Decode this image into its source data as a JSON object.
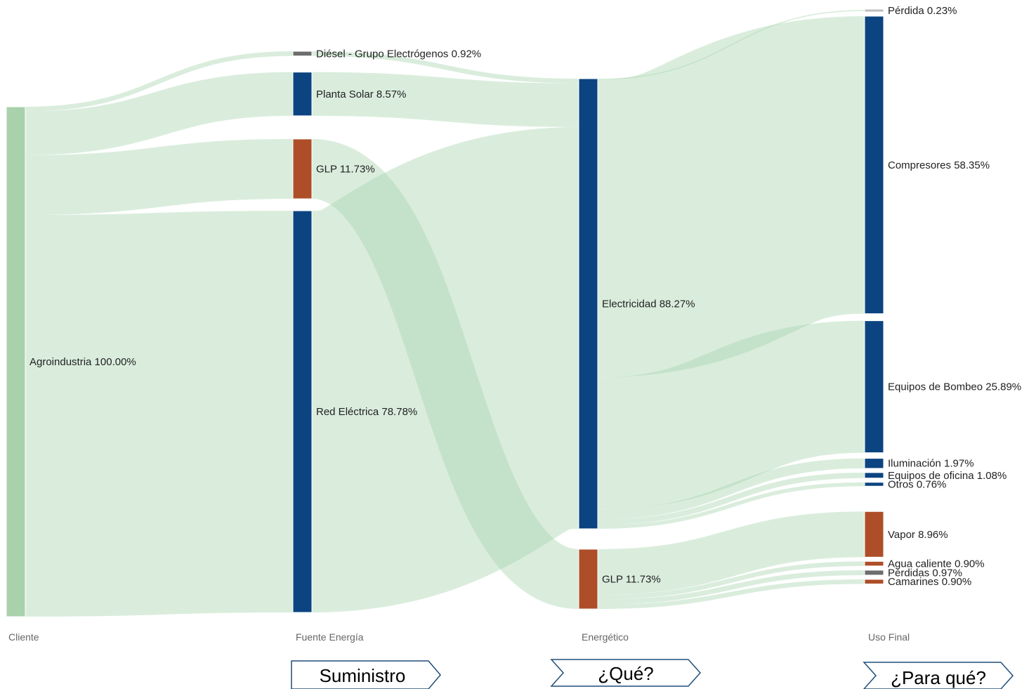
{
  "columns": [
    "Cliente",
    "Fuente Energía",
    "Energético",
    "Uso Final"
  ],
  "callouts": [
    "Suministro",
    "¿Qué?",
    "¿Para qué?"
  ],
  "colors": {
    "client": "#a9d1ac",
    "electric": "#0b4480",
    "glp": "#ad4e28",
    "gray": "#6d6d6d",
    "lightgray": "#bdbdbd",
    "link": "#a8d3ad"
  },
  "nodes": [
    {
      "id": "agro",
      "label": "Agroindustria 100.00%",
      "column": 0,
      "color": "client"
    },
    {
      "id": "diesel",
      "label": "Diésel - Grupo Electrógenos 0.92%",
      "column": 1,
      "color": "gray"
    },
    {
      "id": "solar",
      "label": "Planta Solar 8.57%",
      "column": 1,
      "color": "electric"
    },
    {
      "id": "glp_src",
      "label": "GLP 11.73%",
      "column": 1,
      "color": "glp"
    },
    {
      "id": "red",
      "label": "Red Eléctrica 78.78%",
      "column": 1,
      "color": "electric"
    },
    {
      "id": "elec",
      "label": "Electricidad 88.27%",
      "column": 2,
      "color": "electric"
    },
    {
      "id": "glp",
      "label": "GLP 11.73%",
      "column": 2,
      "color": "glp"
    },
    {
      "id": "perdida",
      "label": "Pérdida 0.23%",
      "column": 3,
      "color": "lightgray"
    },
    {
      "id": "comp",
      "label": "Compresores 58.35%",
      "column": 3,
      "color": "electric"
    },
    {
      "id": "bombeo",
      "label": "Equipos de Bombeo 25.89%",
      "column": 3,
      "color": "electric"
    },
    {
      "id": "ilum",
      "label": "Iluminación 1.97%",
      "column": 3,
      "color": "electric"
    },
    {
      "id": "ofic",
      "label": "Equipos de oficina 1.08%",
      "column": 3,
      "color": "electric"
    },
    {
      "id": "otros",
      "label": "Otros 0.76%",
      "column": 3,
      "color": "electric"
    },
    {
      "id": "vapor",
      "label": "Vapor 8.96%",
      "column": 3,
      "color": "glp"
    },
    {
      "id": "agua",
      "label": "Agua caliente 0.90%",
      "column": 3,
      "color": "glp"
    },
    {
      "id": "perdidas",
      "label": "Pérdidas 0.97%",
      "column": 3,
      "color": "gray"
    },
    {
      "id": "camar",
      "label": "Camarines 0.90%",
      "column": 3,
      "color": "glp"
    }
  ],
  "flows": [
    {
      "source": "agro",
      "target": "diesel",
      "value": 0.92
    },
    {
      "source": "agro",
      "target": "solar",
      "value": 8.57
    },
    {
      "source": "agro",
      "target": "glp_src",
      "value": 11.73
    },
    {
      "source": "agro",
      "target": "red",
      "value": 78.78
    },
    {
      "source": "diesel",
      "target": "elec",
      "value": 0.92
    },
    {
      "source": "solar",
      "target": "elec",
      "value": 8.57
    },
    {
      "source": "glp_src",
      "target": "glp",
      "value": 11.73
    },
    {
      "source": "red",
      "target": "elec",
      "value": 78.78
    },
    {
      "source": "elec",
      "target": "perdida",
      "value": 0.23
    },
    {
      "source": "elec",
      "target": "comp",
      "value": 58.35
    },
    {
      "source": "elec",
      "target": "bombeo",
      "value": 25.89
    },
    {
      "source": "elec",
      "target": "ilum",
      "value": 1.97
    },
    {
      "source": "elec",
      "target": "ofic",
      "value": 1.08
    },
    {
      "source": "elec",
      "target": "otros",
      "value": 0.76
    },
    {
      "source": "glp",
      "target": "vapor",
      "value": 8.96
    },
    {
      "source": "glp",
      "target": "agua",
      "value": 0.9
    },
    {
      "source": "glp",
      "target": "perdidas",
      "value": 0.97
    },
    {
      "source": "glp",
      "target": "camar",
      "value": 0.9
    }
  ]
}
